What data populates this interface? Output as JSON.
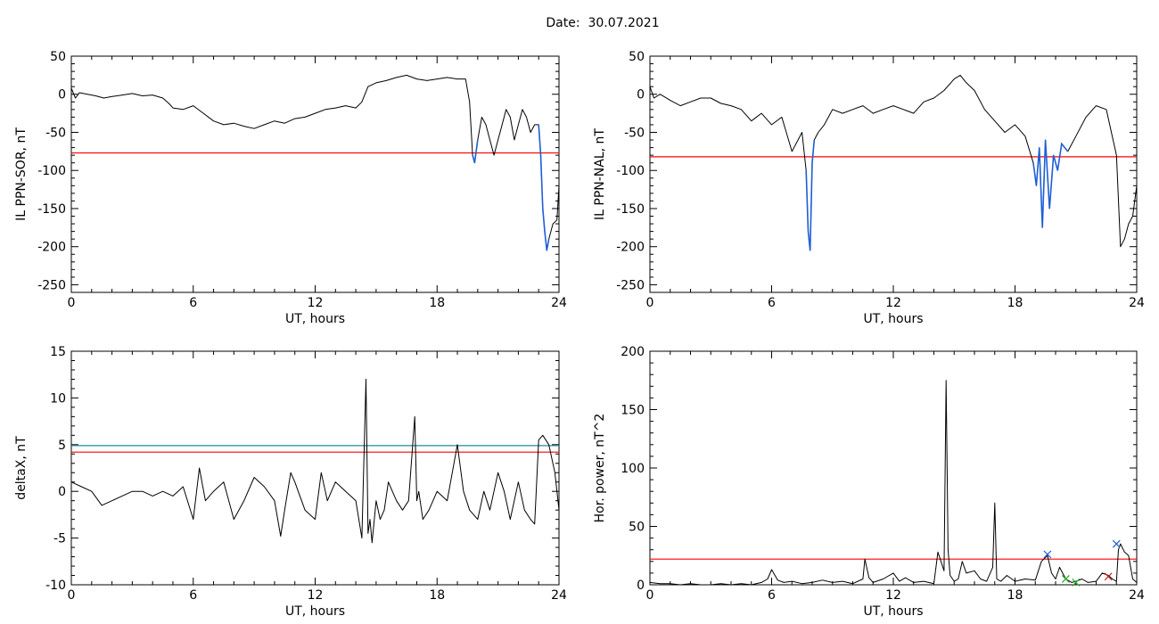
{
  "header": {
    "date_label": "Date:",
    "date_value": "30.07.2021"
  },
  "colors": {
    "trace": "#000000",
    "threshold": "#ff0000",
    "threshold2": "#1e8c9c",
    "highlight": "#1f5fd6",
    "marker_blue": "#1f5fd6",
    "marker_red": "#cc2222",
    "marker_green": "#22aa22"
  },
  "chart_data": [
    {
      "id": "il-sor",
      "type": "line",
      "ylabel": "IL PPN-SOR, nT",
      "xlabel": "UT, hours",
      "xlim": [
        0,
        24
      ],
      "ylim": [
        -260,
        50
      ],
      "xticks": [
        0,
        6,
        12,
        18,
        24
      ],
      "yticks": [
        50,
        0,
        -50,
        -100,
        -150,
        -200,
        -250
      ],
      "threshold": -77,
      "highlight_ranges": [
        [
          19.7,
          20.0
        ],
        [
          23.0,
          23.6
        ]
      ],
      "series": [
        {
          "x": [
            0,
            0.2,
            0.4,
            0.8,
            1.2,
            1.6,
            2,
            2.5,
            3,
            3.5,
            4,
            4.5,
            4.8,
            5,
            5.5,
            6,
            6.5,
            7,
            7.5,
            8,
            8.5,
            9,
            9.5,
            10,
            10.5,
            11,
            11.5,
            12,
            12.5,
            13,
            13.5,
            14,
            14.3,
            14.6,
            15,
            15.5,
            16,
            16.5,
            17,
            17.5,
            18,
            18.5,
            19,
            19.4,
            19.6,
            19.75,
            19.85,
            20,
            20.2,
            20.4,
            20.6,
            20.8,
            21,
            21.2,
            21.4,
            21.6,
            21.8,
            22,
            22.2,
            22.4,
            22.6,
            22.8,
            23,
            23.1,
            23.2,
            23.3,
            23.4,
            23.5,
            23.7,
            23.9,
            24
          ],
          "y": [
            8,
            -5,
            2,
            0,
            -2,
            -5,
            -3,
            -1,
            1,
            -2,
            -1,
            -5,
            -12,
            -18,
            -20,
            -15,
            -25,
            -35,
            -40,
            -38,
            -42,
            -45,
            -40,
            -35,
            -38,
            -32,
            -30,
            -25,
            -20,
            -18,
            -15,
            -18,
            -10,
            10,
            15,
            18,
            22,
            25,
            20,
            18,
            20,
            22,
            20,
            20,
            -10,
            -80,
            -90,
            -60,
            -30,
            -40,
            -60,
            -80,
            -60,
            -40,
            -20,
            -30,
            -60,
            -40,
            -20,
            -30,
            -50,
            -40,
            -40,
            -80,
            -150,
            -180,
            -205,
            -190,
            -170,
            -165,
            -120
          ]
        }
      ]
    },
    {
      "id": "il-nal",
      "type": "line",
      "ylabel": "IL PPN-NAL, nT",
      "xlabel": "UT, hours",
      "xlim": [
        0,
        24
      ],
      "ylim": [
        -260,
        50
      ],
      "xticks": [
        0,
        6,
        12,
        18,
        24
      ],
      "yticks": [
        50,
        0,
        -50,
        -100,
        -150,
        -200,
        -250
      ],
      "threshold": -82,
      "highlight_ranges": [
        [
          7.7,
          8.1
        ],
        [
          18.9,
          20.6
        ]
      ],
      "series": [
        {
          "x": [
            0,
            0.2,
            0.5,
            1,
            1.5,
            2,
            2.5,
            3,
            3.5,
            4,
            4.5,
            5,
            5.5,
            6,
            6.5,
            7,
            7.5,
            7.7,
            7.8,
            7.9,
            8,
            8.1,
            8.3,
            8.6,
            9,
            9.5,
            10,
            10.5,
            11,
            11.5,
            12,
            12.5,
            13,
            13.5,
            14,
            14.5,
            15,
            15.3,
            15.6,
            16,
            16.5,
            17,
            17.5,
            18,
            18.5,
            18.9,
            19.05,
            19.2,
            19.35,
            19.5,
            19.7,
            19.9,
            20.1,
            20.3,
            20.6,
            21,
            21.5,
            22,
            22.5,
            23,
            23.2,
            23.4,
            23.6,
            23.8,
            24
          ],
          "y": [
            10,
            -5,
            0,
            -8,
            -15,
            -10,
            -5,
            -5,
            -12,
            -15,
            -20,
            -35,
            -25,
            -40,
            -30,
            -75,
            -50,
            -100,
            -180,
            -205,
            -90,
            -60,
            -50,
            -40,
            -20,
            -25,
            -20,
            -15,
            -25,
            -20,
            -15,
            -20,
            -25,
            -10,
            -5,
            5,
            20,
            25,
            15,
            5,
            -20,
            -35,
            -50,
            -40,
            -55,
            -90,
            -120,
            -70,
            -175,
            -60,
            -150,
            -80,
            -100,
            -65,
            -75,
            -55,
            -30,
            -15,
            -20,
            -80,
            -200,
            -190,
            -170,
            -160,
            -120
          ]
        }
      ]
    },
    {
      "id": "deltax",
      "type": "line",
      "ylabel": "deltaX, nT",
      "xlabel": "UT, hours",
      "xlim": [
        0,
        24
      ],
      "ylim": [
        -10,
        15
      ],
      "xticks": [
        0,
        6,
        12,
        18,
        24
      ],
      "yticks": [
        15,
        10,
        5,
        0,
        -5,
        -10
      ],
      "threshold": 4.2,
      "threshold2": 4.9,
      "series": [
        {
          "x": [
            0,
            0.5,
            1,
            1.5,
            2,
            2.5,
            3,
            3.5,
            4,
            4.5,
            5,
            5.5,
            6,
            6.3,
            6.6,
            7,
            7.5,
            8,
            8.5,
            9,
            9.5,
            10,
            10.3,
            10.5,
            10.8,
            11,
            11.5,
            12,
            12.3,
            12.6,
            13,
            13.5,
            14,
            14.3,
            14.5,
            14.6,
            14.7,
            14.8,
            15,
            15.2,
            15.4,
            15.6,
            15.8,
            16,
            16.3,
            16.6,
            16.9,
            17,
            17.1,
            17.3,
            17.6,
            18,
            18.5,
            19,
            19.3,
            19.6,
            20,
            20.3,
            20.6,
            21,
            21.3,
            21.6,
            22,
            22.3,
            22.6,
            22.8,
            23,
            23.2,
            23.5,
            23.8,
            24
          ],
          "y": [
            1,
            0.5,
            0,
            -1.5,
            -1,
            -0.5,
            0,
            0,
            -0.5,
            0,
            -0.5,
            0.5,
            -3,
            2.5,
            -1,
            0,
            1,
            -3,
            -1,
            1.5,
            0.5,
            -1,
            -4.8,
            -2,
            2,
            1,
            -2,
            -3,
            2,
            -1,
            1,
            0,
            -1,
            -5,
            12,
            -4.5,
            -3,
            -5.5,
            -1,
            -3,
            -2,
            1,
            0,
            -1,
            -2,
            -1,
            8,
            -1,
            0,
            -3,
            -2,
            0,
            -1,
            5,
            0,
            -2,
            -3,
            0,
            -2,
            2,
            0,
            -3,
            1,
            -2,
            -3,
            -3.5,
            5.5,
            6,
            5,
            2,
            -2
          ]
        }
      ]
    },
    {
      "id": "hor-power",
      "type": "line",
      "ylabel": "Hor. power, nT^2",
      "xlabel": "UT, hours",
      "xlim": [
        0,
        24
      ],
      "ylim": [
        0,
        200
      ],
      "xticks": [
        0,
        6,
        12,
        18,
        24
      ],
      "yticks": [
        200,
        150,
        100,
        50,
        0
      ],
      "threshold": 22,
      "markers": [
        {
          "x": 19.6,
          "y": 26,
          "color": "blue"
        },
        {
          "x": 23.0,
          "y": 35,
          "color": "blue"
        },
        {
          "x": 22.6,
          "y": 7,
          "color": "red"
        },
        {
          "x": 20.5,
          "y": 5,
          "color": "green"
        },
        {
          "x": 21.0,
          "y": 2,
          "color": "green"
        }
      ],
      "series": [
        {
          "x": [
            0,
            0.5,
            1,
            1.5,
            2,
            2.5,
            3,
            3.5,
            4,
            4.5,
            5,
            5.5,
            5.8,
            6,
            6.3,
            6.6,
            7,
            7.5,
            8,
            8.5,
            9,
            9.5,
            10,
            10.5,
            10.6,
            10.8,
            11,
            11.5,
            12,
            12.3,
            12.6,
            13,
            13.5,
            14,
            14.2,
            14.5,
            14.6,
            14.7,
            14.8,
            15,
            15.2,
            15.4,
            15.6,
            16,
            16.3,
            16.6,
            16.9,
            17,
            17.1,
            17.3,
            17.6,
            18,
            18.5,
            19,
            19.3,
            19.6,
            19.8,
            20,
            20.2,
            20.5,
            20.8,
            21,
            21.3,
            21.6,
            22,
            22.3,
            22.6,
            22.8,
            23,
            23.1,
            23.2,
            23.4,
            23.6,
            23.8,
            24
          ],
          "y": [
            2,
            1,
            1,
            0,
            1,
            0,
            0,
            1,
            0,
            1,
            0,
            2,
            5,
            13,
            4,
            2,
            3,
            1,
            2,
            4,
            2,
            3,
            1,
            5,
            22,
            6,
            2,
            5,
            10,
            3,
            6,
            2,
            3,
            1,
            28,
            12,
            175,
            30,
            8,
            3,
            5,
            20,
            10,
            12,
            5,
            3,
            15,
            70,
            5,
            3,
            8,
            3,
            5,
            4,
            20,
            25,
            10,
            5,
            15,
            5,
            2,
            3,
            5,
            2,
            3,
            10,
            8,
            5,
            3,
            30,
            35,
            28,
            25,
            5,
            2
          ]
        }
      ]
    }
  ]
}
